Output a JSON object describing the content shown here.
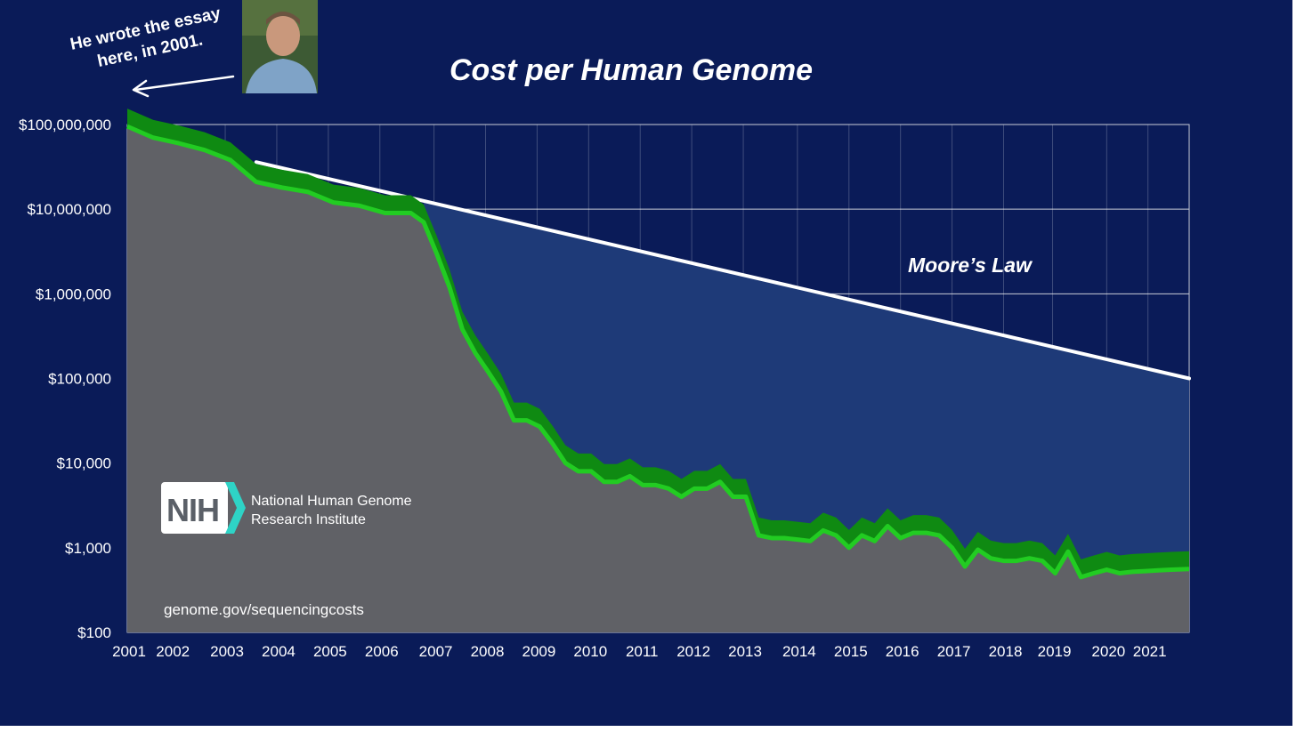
{
  "title": "Cost per Human Genome",
  "annotation": {
    "line1": "He wrote the essay",
    "line2": "here, in 2001."
  },
  "photo": {
    "icon": "portrait-photo-icon"
  },
  "moore_label": "Moore’s Law",
  "nih": {
    "logo_text": "NIH",
    "name_line1": "National Human Genome",
    "name_line2": "Research Institute"
  },
  "source": "genome.gov/sequencingcosts",
  "colors": {
    "background": "#0a1b58",
    "area_gray": "#606166",
    "gap_blue": "#1e3a78",
    "band_green": "#0f8a12",
    "line_green": "#22cc22",
    "moore_line": "#ffffff",
    "nih_teal": "#2ed3c6"
  },
  "chart_data": {
    "type": "line",
    "title": "Cost per Human Genome",
    "scale": "log",
    "ylim": [
      100,
      100000000
    ],
    "xlim": [
      2001,
      2021.6
    ],
    "grid": true,
    "y_ticks": [
      {
        "value": 100000000,
        "label": "$100,000,000"
      },
      {
        "value": 10000000,
        "label": "$10,000,000"
      },
      {
        "value": 1000000,
        "label": "$1,000,000"
      },
      {
        "value": 100000,
        "label": "$100,000"
      },
      {
        "value": 10000,
        "label": "$10,000"
      },
      {
        "value": 1000,
        "label": "$1,000"
      },
      {
        "value": 100,
        "label": "$100"
      }
    ],
    "x_ticks": [
      {
        "value": 2001.0,
        "label": "2001"
      },
      {
        "value": 2001.85,
        "label": "2002"
      },
      {
        "value": 2002.9,
        "label": "2003"
      },
      {
        "value": 2003.9,
        "label": "2004"
      },
      {
        "value": 2004.9,
        "label": "2005"
      },
      {
        "value": 2005.9,
        "label": "2006"
      },
      {
        "value": 2006.95,
        "label": "2007"
      },
      {
        "value": 2007.95,
        "label": "2008"
      },
      {
        "value": 2008.95,
        "label": "2009"
      },
      {
        "value": 2009.95,
        "label": "2010"
      },
      {
        "value": 2010.95,
        "label": "2011"
      },
      {
        "value": 2011.95,
        "label": "2012"
      },
      {
        "value": 2012.95,
        "label": "2013"
      },
      {
        "value": 2014.0,
        "label": "2014"
      },
      {
        "value": 2015.0,
        "label": "2015"
      },
      {
        "value": 2016.0,
        "label": "2016"
      },
      {
        "value": 2017.0,
        "label": "2017"
      },
      {
        "value": 2018.0,
        "label": "2018"
      },
      {
        "value": 2018.95,
        "label": "2019"
      },
      {
        "value": 2020.0,
        "label": "2020"
      },
      {
        "value": 2020.8,
        "label": "2021"
      }
    ],
    "series": [
      {
        "name": "",
        "x": [
          2001.0,
          2001.5,
          2002.0,
          2002.5,
          2003.0,
          2003.5,
          2004.0,
          2004.5,
          2005.0,
          2005.5,
          2006.0,
          2006.5,
          2006.75,
          2007.0,
          2007.25,
          2007.5,
          2007.75,
          2008.0,
          2008.25,
          2008.5,
          2008.75,
          2009.0,
          2009.25,
          2009.5,
          2009.75,
          2010.0,
          2010.25,
          2010.5,
          2010.75,
          2011.0,
          2011.25,
          2011.5,
          2011.75,
          2012.0,
          2012.25,
          2012.5,
          2012.75,
          2013.0,
          2013.25,
          2013.5,
          2013.75,
          2014.0,
          2014.25,
          2014.5,
          2014.75,
          2015.0,
          2015.25,
          2015.5,
          2015.75,
          2016.0,
          2016.25,
          2016.5,
          2016.75,
          2017.0,
          2017.25,
          2017.5,
          2017.75,
          2018.0,
          2018.25,
          2018.5,
          2018.75,
          2019.0,
          2019.25,
          2019.5,
          2019.75,
          2020.0,
          2020.25,
          2020.5,
          2020.75,
          2021.0,
          2021.25,
          2021.6
        ],
        "values": [
          95000000,
          70000000,
          60000000,
          50000000,
          38000000,
          21000000,
          18000000,
          16000000,
          12000000,
          11000000,
          9000000,
          9000000,
          7000000,
          3000000,
          1200000,
          380000,
          200000,
          120000,
          70000,
          32000,
          32000,
          27000,
          17000,
          10000,
          8000,
          8000,
          6000,
          6000,
          7000,
          5500,
          5500,
          5000,
          4000,
          5000,
          5000,
          6000,
          4000,
          4000,
          1400,
          1300,
          1300,
          1250,
          1200,
          1600,
          1400,
          1000,
          1400,
          1200,
          1800,
          1300,
          1500,
          1500,
          1400,
          1000,
          600,
          950,
          750,
          700,
          700,
          750,
          700,
          500,
          900,
          450,
          500,
          550,
          500,
          520,
          530,
          540,
          550,
          560
        ]
      },
      {
        "name": "Moore’s Law",
        "x": [
          2003.5,
          2021.6
        ],
        "values": [
          36000000,
          100000
        ]
      }
    ]
  }
}
